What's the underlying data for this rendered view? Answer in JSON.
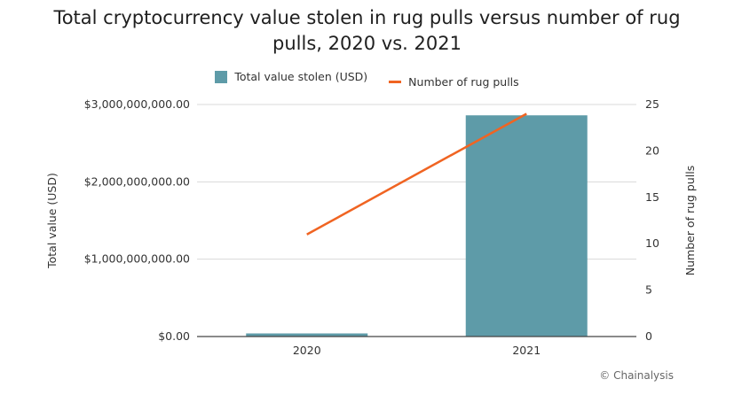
{
  "chart_data": {
    "type": "bar",
    "title_line1": "Total cryptocurrency value stolen in rug pulls versus number of rug",
    "title_line2": "pulls, 2020 vs. 2021",
    "categories": [
      "2020",
      "2021"
    ],
    "series": [
      {
        "name": "Total value stolen (USD)",
        "kind": "bar",
        "axis": "left",
        "values": [
          40000000,
          2860000000
        ]
      },
      {
        "name": "Number of rug pulls",
        "kind": "line",
        "axis": "right",
        "values": [
          11,
          24
        ]
      }
    ],
    "ylabel": "Total value (USD)",
    "y2label": "Number of rug pulls",
    "ylim": [
      0,
      3000000000
    ],
    "y2lim": [
      0,
      25
    ],
    "yticks": [
      "$0.00",
      "$1,000,000,000.00",
      "$2,000,000,000.00",
      "$3,000,000,000.00"
    ],
    "ytick_values": [
      0,
      1000000000,
      2000000000,
      3000000000
    ],
    "y2ticks": [
      "0",
      "5",
      "10",
      "15",
      "20",
      "25"
    ],
    "y2tick_values": [
      0,
      5,
      10,
      15,
      20,
      25
    ],
    "grid": true,
    "legend_position": "top-center",
    "colors": {
      "bar": "#5e9ba8",
      "line": "#f06422",
      "grid": "#d9d9d9",
      "axis": "#444444"
    }
  },
  "credit": "© Chainalysis"
}
